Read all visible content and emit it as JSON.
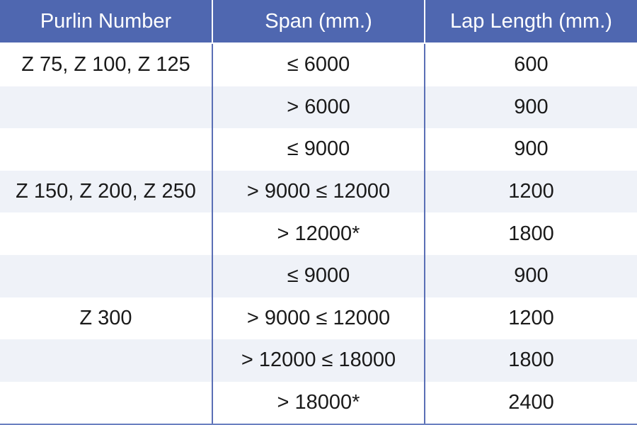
{
  "headers": [
    "Purlin Number",
    "Span (mm.)",
    "Lap Length (mm.)"
  ],
  "rows": [
    [
      "Z 75, Z 100, Z 125",
      "≤ 6000",
      "600"
    ],
    [
      "",
      "> 6000",
      "900"
    ],
    [
      "",
      "≤ 9000",
      "900"
    ],
    [
      "Z 150, Z 200, Z 250",
      "> 9000 ≤ 12000",
      "1200"
    ],
    [
      "",
      "> 12000*",
      "1800"
    ],
    [
      "",
      "≤ 9000",
      "900"
    ],
    [
      "Z 300",
      "> 9000 ≤ 12000",
      "1200"
    ],
    [
      "",
      "> 12000 ≤ 18000",
      "1800"
    ],
    [
      "",
      "> 18000*",
      "2400"
    ]
  ],
  "colors": {
    "header": "#4f67b0",
    "alt_row": "#eff2f8",
    "divider": "#5a6fb5"
  }
}
